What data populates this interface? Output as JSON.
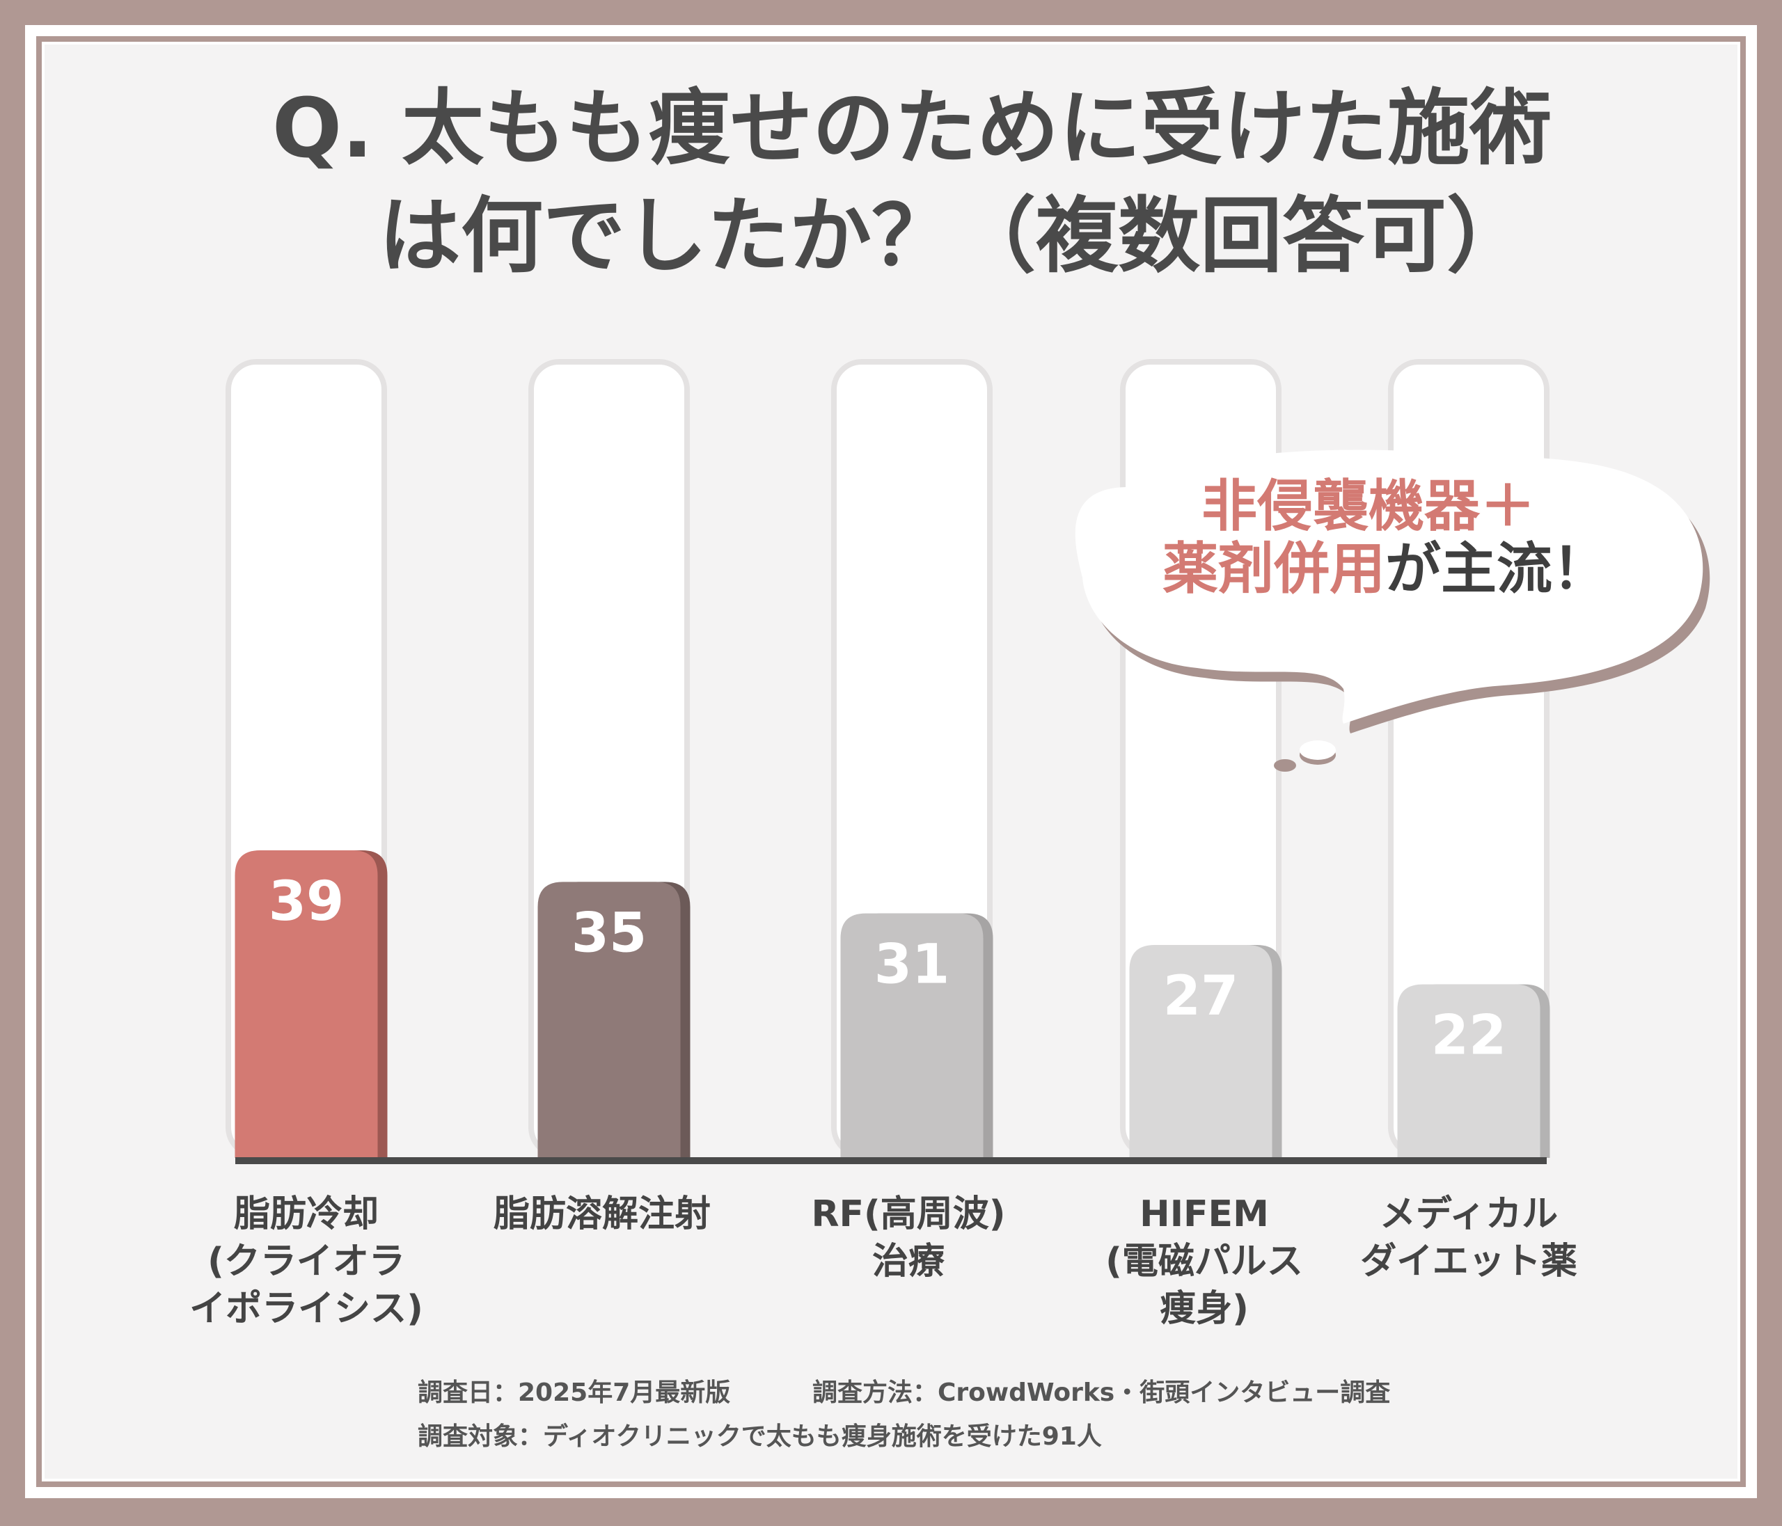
{
  "colors": {
    "frame": "#b09893",
    "panel": "#f4f3f3",
    "title_text": "#4a4a4a",
    "accent": "#d37a73",
    "secondary": "#8f7a78",
    "gray_bar": "#c5c3c3",
    "light_bar": "#d9d8d8",
    "bubble_shadow": "#a8928e"
  },
  "title_lines": [
    "Q. 太もも痩せのために受けた施術",
    "は何でしたか？（複数回答可）"
  ],
  "callout": {
    "line1": "非侵襲機器＋",
    "line2_accent": "薬剤併用",
    "line2_rest": "が主流！"
  },
  "chart_data": {
    "type": "bar",
    "categories": [
      "脂肪冷却(クライオライポライシス)",
      "脂肪溶解注射",
      "RF(高周波)治療",
      "HIFEM(電磁パルス痩身)",
      "メディカルダイエット薬"
    ],
    "category_label_lines": [
      [
        "脂肪冷却",
        "(クライオラ",
        "イポライシス)"
      ],
      [
        "脂肪溶解注射"
      ],
      [
        "RF(高周波)",
        "治療"
      ],
      [
        "HIFEM",
        "(電磁パルス",
        "痩身)"
      ],
      [
        "メディカル",
        "ダイエット薬"
      ]
    ],
    "values": [
      39,
      35,
      31,
      27,
      22
    ],
    "bar_colors": [
      "#d37a73",
      "#8f7a78",
      "#c5c3c3",
      "#d9d8d8",
      "#d9d8d8"
    ],
    "bar_shadow_colors": [
      "#9c5852",
      "#6c5a58",
      "#a6a4a4",
      "#b4b3b3",
      "#b4b3b3"
    ],
    "label_colors": [
      "#ffffff",
      "#ffffff",
      "#ffffff",
      "#ffffff",
      "#ffffff"
    ],
    "ylim": [
      0,
      39
    ],
    "grid": false,
    "legend": "none"
  },
  "footer": {
    "line1_left": "調査日：2025年7月最新版",
    "line1_right": "調査方法：CrowdWorks・街頭インタビュー調査",
    "line2": "調査対象：ディオクリニックで太もも痩身施術を受けた91人"
  }
}
